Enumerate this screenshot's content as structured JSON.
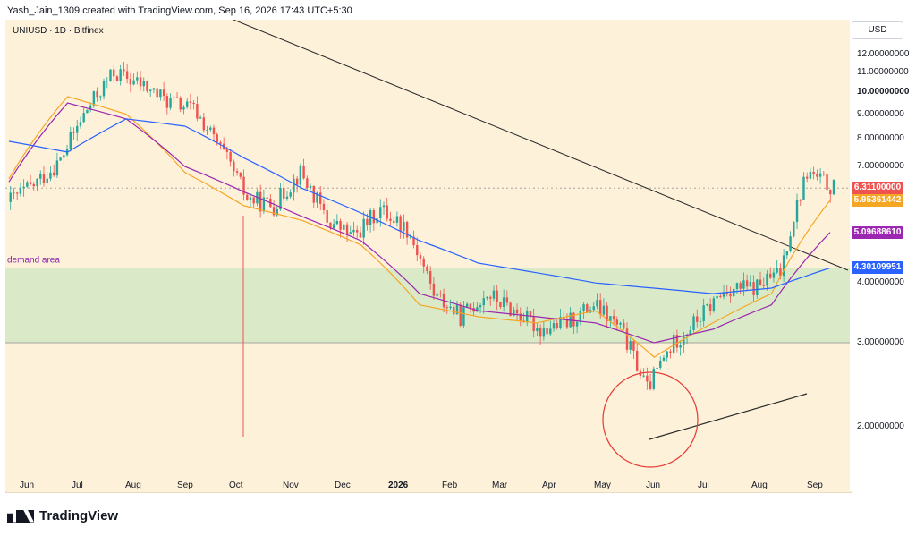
{
  "header": {
    "caption": "Yash_Jain_1309 created with TradingView.com, Sep 16, 2026 17:43 UTC+5:30"
  },
  "symbol": "UNIUSD · 1D · Bitfinex",
  "currency": "USD",
  "footer": {
    "brand": "TradingView"
  },
  "colors": {
    "background": "#fdf1d9",
    "up": "#26a69a",
    "down": "#ef5350",
    "ema_fast": "#f5a623",
    "ema_mid": "#9c27b0",
    "ema_slow": "#2962ff",
    "demand_zone": "#cfe7c3",
    "circle": "#e53935"
  },
  "chart_data": {
    "type": "candlestick",
    "title": "",
    "x_labels": [
      "Jun",
      "Jul",
      "Aug",
      "Sep",
      "Oct",
      "Nov",
      "Dec",
      "2026",
      "Feb",
      "Mar",
      "Apr",
      "May",
      "Jun",
      "Jul",
      "Aug",
      "Sep"
    ],
    "y_ticks": [
      "12.00000000",
      "11.00000000",
      "10.00000000",
      "9.00000000",
      "8.00000000",
      "7.00000000",
      "4.00000000",
      "3.00000000",
      "2.00000000"
    ],
    "y_scale": "log",
    "ylim": [
      1.65,
      13.7
    ],
    "price_badges": [
      {
        "label": "6.31100000",
        "value": 6.311,
        "color": "#ef5350"
      },
      {
        "label": "5.95361442",
        "value": 5.954,
        "color": "#f5a623"
      },
      {
        "label": "5.09688610",
        "value": 5.097,
        "color": "#9c27b0"
      },
      {
        "label": "4.30109951",
        "value": 4.301,
        "color": "#2962ff"
      }
    ],
    "zone": {
      "label": "demand area",
      "top": 4.3,
      "mid": 3.65,
      "bottom": 3.0
    },
    "last_price_line": 6.311,
    "trendline_down": {
      "from": [
        "Jul",
        13.6
      ],
      "to": [
        "Sep end",
        6.7
      ]
    },
    "trendline_up": {
      "from": [
        "Jun",
        2.3
      ],
      "to": [
        "Sep",
        3.45
      ]
    },
    "circle_annotation": {
      "center": [
        "Jun",
        2.75
      ]
    },
    "price_path": [
      {
        "month": "Jun",
        "close": 5.9
      },
      {
        "month": "Jun",
        "close": 6.4
      },
      {
        "month": "Jul",
        "close": 7.2
      },
      {
        "month": "Jul",
        "close": 9.2
      },
      {
        "month": "Aug",
        "close": 11.0
      },
      {
        "month": "Aug",
        "close": 10.4
      },
      {
        "month": "Sep",
        "close": 9.6
      },
      {
        "month": "Sep",
        "close": 9.2
      },
      {
        "month": "Oct",
        "close": 7.6
      },
      {
        "month": "Oct",
        "close": 6.0
      },
      {
        "month": "Nov",
        "close": 5.8
      },
      {
        "month": "Nov",
        "close": 6.8
      },
      {
        "month": "Dec",
        "close": 5.4
      },
      {
        "month": "Dec",
        "close": 5.0
      },
      {
        "month": "2026",
        "close": 5.7
      },
      {
        "month": "2026",
        "close": 5.2
      },
      {
        "month": "Feb",
        "close": 3.8
      },
      {
        "month": "Feb",
        "close": 3.4
      },
      {
        "month": "Mar",
        "close": 3.8
      },
      {
        "month": "Mar",
        "close": 3.5
      },
      {
        "month": "Apr",
        "close": 3.2
      },
      {
        "month": "Apr",
        "close": 3.3
      },
      {
        "month": "May",
        "close": 3.6
      },
      {
        "month": "May",
        "close": 3.2
      },
      {
        "month": "Jun",
        "close": 2.4
      },
      {
        "month": "Jun",
        "close": 3.0
      },
      {
        "month": "Jul",
        "close": 3.4
      },
      {
        "month": "Jul",
        "close": 3.9
      },
      {
        "month": "Aug",
        "close": 3.9
      },
      {
        "month": "Aug",
        "close": 4.2
      },
      {
        "month": "Sep",
        "close": 6.8
      },
      {
        "month": "Sep",
        "close": 6.3
      }
    ],
    "moving_averages": [
      {
        "color": "#f5a623",
        "values": [
          6.6,
          9.8,
          9.0,
          6.8,
          5.8,
          5.4,
          4.8,
          3.6,
          3.4,
          3.3,
          3.5,
          2.8,
          3.3,
          3.8,
          5.95
        ]
      },
      {
        "color": "#9c27b0",
        "values": [
          6.5,
          9.5,
          8.8,
          7.0,
          6.2,
          5.5,
          4.9,
          3.8,
          3.5,
          3.4,
          3.3,
          3.0,
          3.2,
          3.6,
          5.1
        ]
      },
      {
        "color": "#2962ff",
        "values": [
          7.9,
          7.5,
          8.8,
          8.5,
          7.3,
          6.3,
          5.6,
          4.9,
          4.4,
          4.2,
          4.0,
          3.9,
          3.8,
          3.9,
          4.3
        ]
      }
    ]
  }
}
